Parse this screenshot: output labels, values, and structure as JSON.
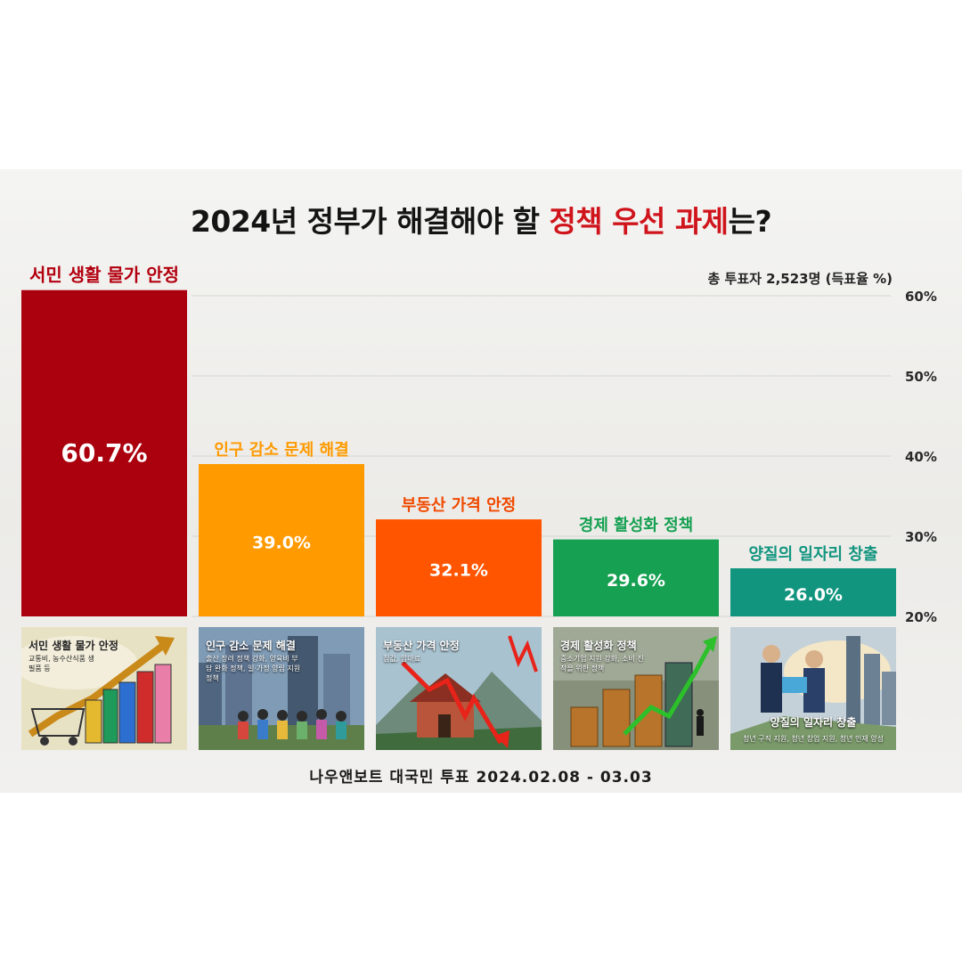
{
  "chart_data": {
    "type": "bar",
    "title_parts": [
      "2024년 정부가 해결해야 할 ",
      "정책 우선 과제",
      "는?"
    ],
    "subtitle": "총 투표자 2,523명 (득표율 %)",
    "categories": [
      "서민 생활 물가 안정",
      "인구 감소 문제 해결",
      "부동산 가격 안정",
      "경제 활성화 정책",
      "양질의 일자리 창출"
    ],
    "values": [
      60.7,
      39.0,
      32.1,
      29.6,
      26.0
    ],
    "value_labels": [
      "60.7%",
      "39.0%",
      "32.1%",
      "29.6%",
      "26.0%"
    ],
    "colors": [
      "#ab000e",
      "#ff9a00",
      "#ff5500",
      "#16a051",
      "#12957f"
    ],
    "label_colors": [
      "#b3000f",
      "#ff9a00",
      "#f04a00",
      "#16a051",
      "#12957f"
    ],
    "ylim": [
      20,
      60
    ],
    "y_ticks": [
      20,
      30,
      40,
      50,
      60
    ],
    "y_tick_labels": [
      "20%",
      "30%",
      "40%",
      "50%",
      "60%"
    ],
    "grid": true
  },
  "cards": [
    {
      "title": "서민 생활 물가 안정",
      "subtitle": "교통비, 농수산식품 생필품 등",
      "icon": "shopping-bags-rising-arrow-image",
      "bg": "#e9e3c8"
    },
    {
      "title": "인구 감소 문제 해결",
      "subtitle": "출산 장려 정책 강화, 양육비 부담 완화 정책, 일·가정 양립 지원 정책",
      "icon": "city-children-image",
      "bg": "#6d8ba6"
    },
    {
      "title": "부동산 가격 안정",
      "subtitle": "집값, 임대료",
      "icon": "house-falling-arrow-image",
      "bg": "#a9c3cf"
    },
    {
      "title": "경제 활성화 정책",
      "subtitle": "중소기업 지원 강화, 소비 진작을 위한 정책",
      "icon": "coin-stacks-growth-image",
      "bg": "#8a8f78"
    },
    {
      "title": "양질의 일자리 창출",
      "subtitle": "청년 구직 지원, 청년 창업 지원, 청년 인재 양성",
      "icon": "business-people-city-image",
      "bg": "#b9c6d0"
    }
  ],
  "footer": "나우앤보트 대국민 투표 2024.02.08 - 03.03"
}
